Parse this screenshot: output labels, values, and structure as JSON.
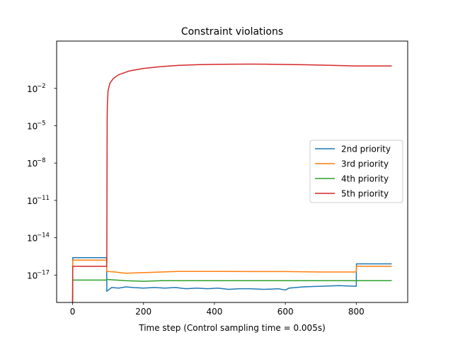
{
  "chart_data": {
    "type": "line",
    "title": "Constraint violations",
    "xlabel": "Time step (Control sampling time = 0.005s)",
    "ylabel": "",
    "xlim": [
      -45,
      945
    ],
    "ylim_exponent": [
      -19.2,
      1.8
    ],
    "yscale": "log",
    "grid": false,
    "legend_position": "right",
    "x_ticks": [
      0,
      200,
      400,
      600,
      800
    ],
    "y_ticks": [
      {
        "base": "10",
        "exp": "−2",
        "value": -2
      },
      {
        "base": "10",
        "exp": "−5",
        "value": -5
      },
      {
        "base": "10",
        "exp": "−8",
        "value": -8
      },
      {
        "base": "10",
        "exp": "−11",
        "value": -11
      },
      {
        "base": "10",
        "exp": "−14",
        "value": -14
      },
      {
        "base": "10",
        "exp": "−17",
        "value": -17
      }
    ],
    "series": [
      {
        "name": "2nd priority",
        "color": "#1f77b4",
        "log10_points": [
          [
            0,
            -20
          ],
          [
            0.5,
            -15.6
          ],
          [
            96,
            -15.6
          ],
          [
            96.5,
            -18.3
          ],
          [
            110,
            -18.0
          ],
          [
            130,
            -18.05
          ],
          [
            150,
            -17.95
          ],
          [
            170,
            -18.0
          ],
          [
            200,
            -18.05
          ],
          [
            230,
            -18.0
          ],
          [
            260,
            -18.05
          ],
          [
            290,
            -18.0
          ],
          [
            320,
            -18.1
          ],
          [
            350,
            -18.05
          ],
          [
            380,
            -18.1
          ],
          [
            410,
            -18.05
          ],
          [
            440,
            -18.15
          ],
          [
            470,
            -18.1
          ],
          [
            500,
            -18.1
          ],
          [
            540,
            -18.15
          ],
          [
            580,
            -18.1
          ],
          [
            600,
            -18.2
          ],
          [
            610,
            -18.05
          ],
          [
            650,
            -17.95
          ],
          [
            700,
            -17.9
          ],
          [
            750,
            -17.85
          ],
          [
            800,
            -17.9
          ],
          [
            800.5,
            -16.1
          ],
          [
            900,
            -16.1
          ]
        ]
      },
      {
        "name": "3rd priority",
        "color": "#ff7f0e",
        "log10_points": [
          [
            0,
            -20
          ],
          [
            0.5,
            -15.8
          ],
          [
            96,
            -15.8
          ],
          [
            96.5,
            -16.7
          ],
          [
            120,
            -16.75
          ],
          [
            150,
            -16.85
          ],
          [
            200,
            -16.8
          ],
          [
            250,
            -16.75
          ],
          [
            300,
            -16.7
          ],
          [
            400,
            -16.7
          ],
          [
            500,
            -16.72
          ],
          [
            600,
            -16.72
          ],
          [
            700,
            -16.75
          ],
          [
            800,
            -16.75
          ],
          [
            800.5,
            -16.3
          ],
          [
            900,
            -16.3
          ]
        ]
      },
      {
        "name": "4th priority",
        "color": "#2ca02c",
        "log10_points": [
          [
            0,
            -20
          ],
          [
            0.5,
            -17.4
          ],
          [
            96,
            -17.4
          ],
          [
            96.5,
            -17.35
          ],
          [
            150,
            -17.45
          ],
          [
            200,
            -17.5
          ],
          [
            250,
            -17.45
          ],
          [
            300,
            -17.45
          ],
          [
            400,
            -17.45
          ],
          [
            500,
            -17.45
          ],
          [
            600,
            -17.45
          ],
          [
            700,
            -17.45
          ],
          [
            800,
            -17.45
          ],
          [
            900,
            -17.45
          ]
        ]
      },
      {
        "name": "5th priority",
        "color": "#d62728",
        "log10_points": [
          [
            0,
            -20
          ],
          [
            0.5,
            -16.3
          ],
          [
            96,
            -16.3
          ],
          [
            96.5,
            -16.0
          ],
          [
            97,
            -10.0
          ],
          [
            97.5,
            -4.5
          ],
          [
            98,
            -3.4
          ],
          [
            100,
            -2.2
          ],
          [
            105,
            -1.6
          ],
          [
            115,
            -1.2
          ],
          [
            130,
            -0.9
          ],
          [
            160,
            -0.6
          ],
          [
            200,
            -0.4
          ],
          [
            250,
            -0.25
          ],
          [
            300,
            -0.15
          ],
          [
            350,
            -0.1
          ],
          [
            400,
            -0.07
          ],
          [
            450,
            -0.06
          ],
          [
            500,
            -0.05
          ],
          [
            550,
            -0.06
          ],
          [
            600,
            -0.08
          ],
          [
            650,
            -0.1
          ],
          [
            700,
            -0.13
          ],
          [
            750,
            -0.16
          ],
          [
            800,
            -0.2
          ],
          [
            850,
            -0.2
          ],
          [
            900,
            -0.2
          ]
        ]
      }
    ]
  }
}
